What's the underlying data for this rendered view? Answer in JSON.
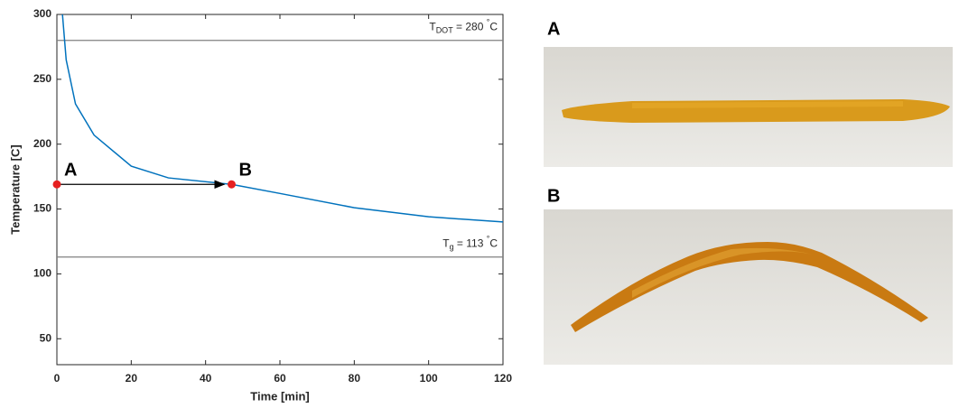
{
  "chart_data": {
    "type": "line",
    "x_label": "Time [min]",
    "y_label": "Temperature [C]",
    "x": [
      1.5,
      2.5,
      5,
      10,
      20,
      30,
      47,
      60,
      80,
      100,
      120
    ],
    "series": [
      {
        "color": "#0072bd",
        "values": [
          300,
          265,
          231,
          207,
          183,
          174,
          169,
          162,
          151,
          144,
          140
        ]
      }
    ],
    "xlim": [
      0,
      120
    ],
    "xticks": [
      0,
      20,
      40,
      60,
      80,
      100,
      120
    ],
    "ylim": [
      30,
      300
    ],
    "yticks": [
      50,
      100,
      150,
      200,
      250,
      300
    ],
    "hlines": [
      {
        "value": 280,
        "color": "#808080",
        "main": "T",
        "sub": "DOT",
        "rest": " = 280 ",
        "sup": "°",
        "unit": "C"
      },
      {
        "value": 113,
        "color": "#808080",
        "main": "T",
        "sub": "g",
        "rest": " = 113 ",
        "sup": "°",
        "unit": "C"
      }
    ],
    "markers": {
      "x": [
        0,
        47
      ],
      "y": [
        169,
        169
      ],
      "labels": [
        "A",
        "B"
      ],
      "color": "#e62020"
    },
    "arrow": {
      "x": [
        0,
        45
      ],
      "y": 169,
      "color": "#000000"
    }
  },
  "photos": [
    {
      "label": "A"
    },
    {
      "label": "B"
    }
  ]
}
